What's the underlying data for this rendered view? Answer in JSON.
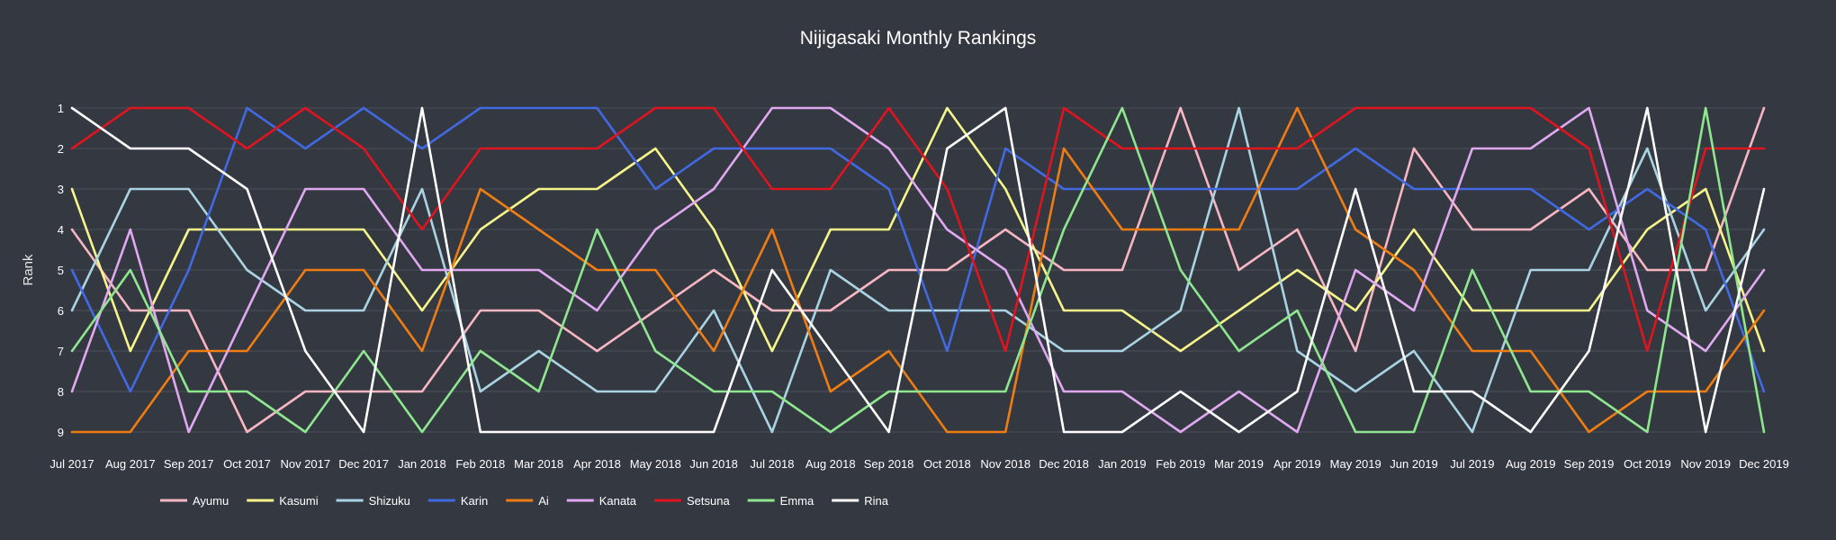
{
  "chart_data": {
    "type": "line",
    "title": "Nijigasaki Monthly Rankings",
    "xlabel": "",
    "ylabel": "Rank",
    "ylim": [
      1,
      9
    ],
    "y_inverted": true,
    "yticks": [
      1,
      2,
      3,
      4,
      5,
      6,
      7,
      8,
      9
    ],
    "grid": true,
    "legend_position": "bottom-left",
    "x": [
      "Jul 2017",
      "Aug 2017",
      "Sep 2017",
      "Oct 2017",
      "Nov 2017",
      "Dec 2017",
      "Jan 2018",
      "Feb 2018",
      "Mar 2018",
      "Apr 2018",
      "May 2018",
      "Jun 2018",
      "Jul 2018",
      "Aug 2018",
      "Sep 2018",
      "Oct 2018",
      "Nov 2018",
      "Dec 2018",
      "Jan 2019",
      "Feb 2019",
      "Mar 2019",
      "Apr 2019",
      "May 2019",
      "Jun 2019",
      "Jul 2019",
      "Aug 2019",
      "Sep 2019",
      "Oct 2019",
      "Nov 2019",
      "Dec 2019"
    ],
    "series": [
      {
        "name": "Ayumu",
        "color": "#f7b6c2",
        "values": [
          4,
          6,
          6,
          9,
          8,
          8,
          8,
          6,
          6,
          7,
          6,
          5,
          6,
          6,
          5,
          5,
          4,
          5,
          5,
          1,
          5,
          4,
          7,
          2,
          4,
          4,
          3,
          5,
          5,
          1
        ]
      },
      {
        "name": "Kasumi",
        "color": "#f5f58a",
        "values": [
          3,
          7,
          4,
          4,
          4,
          4,
          6,
          4,
          3,
          3,
          2,
          4,
          7,
          4,
          4,
          1,
          3,
          6,
          6,
          7,
          6,
          5,
          6,
          4,
          6,
          6,
          6,
          4,
          3,
          7
        ]
      },
      {
        "name": "Shizuku",
        "color": "#a9d3e3",
        "values": [
          6,
          3,
          3,
          5,
          6,
          6,
          3,
          8,
          7,
          8,
          8,
          6,
          9,
          5,
          6,
          6,
          6,
          7,
          7,
          6,
          1,
          7,
          8,
          7,
          9,
          5,
          5,
          2,
          6,
          4
        ]
      },
      {
        "name": "Karin",
        "color": "#4169e1",
        "values": [
          5,
          8,
          5,
          1,
          2,
          1,
          2,
          1,
          1,
          1,
          3,
          2,
          2,
          2,
          3,
          7,
          2,
          3,
          3,
          3,
          3,
          3,
          2,
          3,
          3,
          3,
          4,
          3,
          4,
          8
        ]
      },
      {
        "name": "Ai",
        "color": "#f07d12",
        "values": [
          9,
          9,
          7,
          7,
          5,
          5,
          7,
          3,
          4,
          5,
          5,
          7,
          4,
          8,
          7,
          9,
          9,
          2,
          4,
          4,
          4,
          1,
          4,
          5,
          7,
          7,
          9,
          8,
          8,
          6
        ]
      },
      {
        "name": "Kanata",
        "color": "#e0a8f0",
        "values": [
          8,
          4,
          9,
          6,
          3,
          3,
          5,
          5,
          5,
          6,
          4,
          3,
          1,
          1,
          2,
          4,
          5,
          8,
          8,
          9,
          8,
          9,
          5,
          6,
          2,
          2,
          1,
          6,
          7,
          5
        ]
      },
      {
        "name": "Setsuna",
        "color": "#e0141e",
        "values": [
          2,
          1,
          1,
          2,
          1,
          2,
          4,
          2,
          2,
          2,
          1,
          1,
          3,
          3,
          1,
          3,
          7,
          1,
          2,
          2,
          2,
          2,
          1,
          1,
          1,
          1,
          2,
          7,
          2,
          2
        ]
      },
      {
        "name": "Emma",
        "color": "#8ee68e",
        "values": [
          7,
          5,
          8,
          8,
          9,
          7,
          9,
          7,
          8,
          4,
          7,
          8,
          8,
          9,
          8,
          8,
          8,
          4,
          1,
          5,
          7,
          6,
          9,
          9,
          5,
          8,
          8,
          9,
          1,
          9
        ]
      },
      {
        "name": "Rina",
        "color": "#ffffff",
        "values": [
          1,
          2,
          2,
          3,
          7,
          9,
          1,
          9,
          9,
          9,
          9,
          9,
          5,
          7,
          9,
          2,
          1,
          9,
          9,
          8,
          9,
          8,
          3,
          8,
          8,
          9,
          7,
          1,
          9,
          3
        ]
      }
    ]
  }
}
